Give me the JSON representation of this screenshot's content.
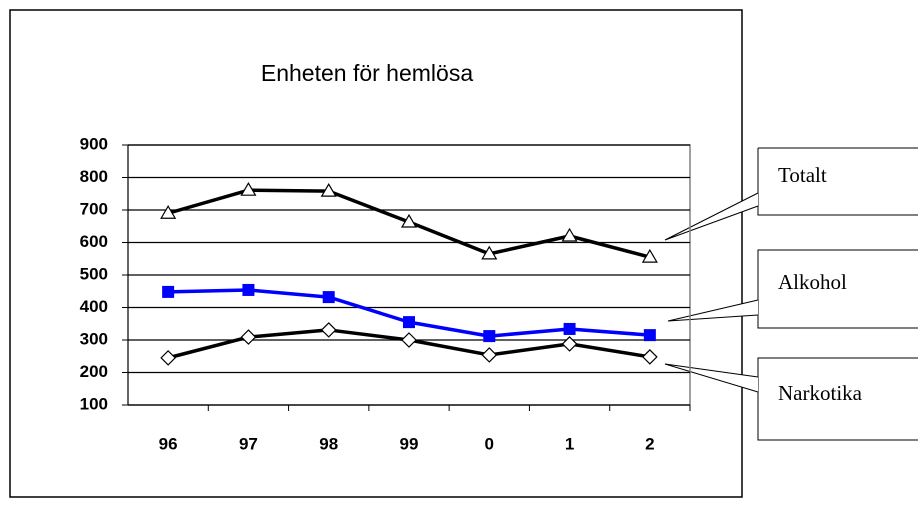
{
  "chart_data": {
    "type": "line",
    "title": "Enheten för hemlösa",
    "categories": [
      "96",
      "97",
      "98",
      "99",
      "0",
      "1",
      "2"
    ],
    "series": [
      {
        "name": "Totalt",
        "color": "#000000",
        "marker": "triangle",
        "values": [
          690,
          761,
          758,
          663,
          565,
          620,
          555
        ]
      },
      {
        "name": "Alkohol",
        "color": "#0000ff",
        "marker": "square",
        "values": [
          448,
          454,
          432,
          355,
          312,
          334,
          315
        ]
      },
      {
        "name": "Narkotika",
        "color": "#000000",
        "marker": "diamond",
        "values": [
          245,
          309,
          331,
          300,
          254,
          288,
          248
        ]
      }
    ],
    "ylim": [
      100,
      900
    ],
    "yticks": [
      100,
      200,
      300,
      400,
      500,
      600,
      700,
      800,
      900
    ],
    "grid": true
  }
}
